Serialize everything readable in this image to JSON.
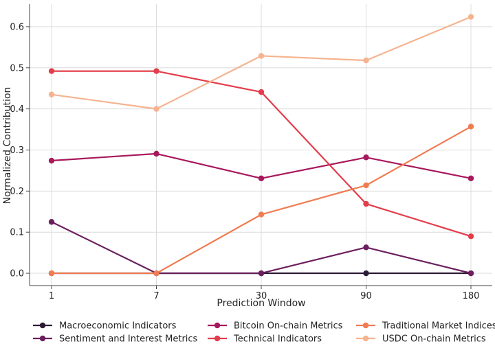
{
  "chart_data": {
    "type": "line",
    "title": "",
    "xlabel": "Prediction Window",
    "ylabel": "Normalized Contribution",
    "categories": [
      "1",
      "7",
      "30",
      "90",
      "180"
    ],
    "ylim": [
      -0.03,
      0.655
    ],
    "yticks": [
      "0.0",
      "0.1",
      "0.2",
      "0.3",
      "0.4",
      "0.5",
      "0.6"
    ],
    "grid": true,
    "legend_position": "bottom",
    "series": [
      {
        "name": "Macroeconomic Indicators",
        "color": "#2d1a36",
        "values": [
          0.0,
          0.0,
          0.0,
          0.0,
          0.0
        ]
      },
      {
        "name": "Sentiment and Interest Metrics",
        "color": "#6b1f5e",
        "values": [
          0.125,
          0.0,
          0.0,
          0.063,
          0.0
        ]
      },
      {
        "name": "Bitcoin On-chain Metrics",
        "color": "#a8185c",
        "values": [
          0.274,
          0.291,
          0.231,
          0.282,
          0.231
        ]
      },
      {
        "name": "Technical Indicators",
        "color": "#e33c4a",
        "values": [
          0.492,
          0.492,
          0.441,
          0.169,
          0.09
        ]
      },
      {
        "name": "Traditional Market Indices",
        "color": "#f07c52",
        "values": [
          0.0,
          0.0,
          0.143,
          0.214,
          0.357
        ]
      },
      {
        "name": "USDC On-chain Metrics",
        "color": "#f6b38f",
        "values": [
          0.435,
          0.4,
          0.529,
          0.518,
          0.624
        ]
      }
    ]
  }
}
